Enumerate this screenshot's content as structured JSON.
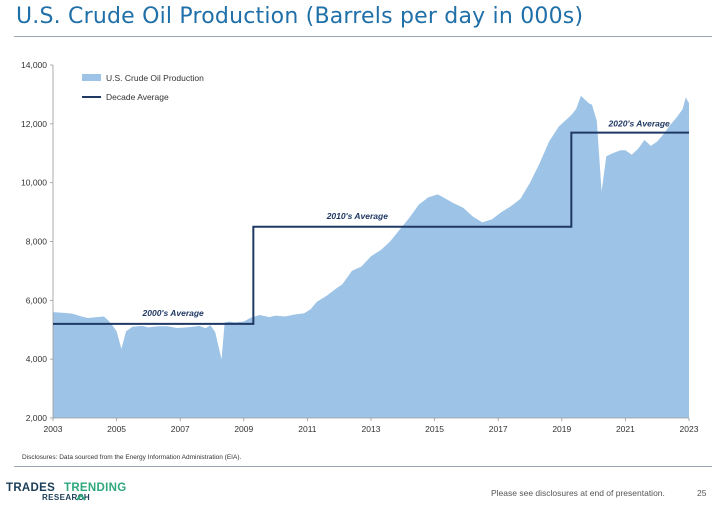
{
  "title": "U.S. Crude Oil Production (Barrels per day in 000s)",
  "disclosure": "Disclosures: Data sourced from the Energy Information Administration (EIA).",
  "footer_note": "Please see disclosures at end of presentation.",
  "page_number": "25",
  "logo": {
    "trades": "TRADES",
    "trending": "TRENDING",
    "research": "RESEARCH"
  },
  "colors": {
    "area": "#9dc3e6",
    "line": "#1f3864",
    "title": "#1f6fa8",
    "text": "#333333"
  },
  "chart_data": {
    "type": "area",
    "title": "U.S. Crude Oil Production (Barrels per day in 000s)",
    "xlabel": "",
    "ylabel": "",
    "xlim": [
      2003,
      2023
    ],
    "ylim": [
      2000,
      14000
    ],
    "yticks": [
      2000,
      4000,
      6000,
      8000,
      10000,
      12000,
      14000
    ],
    "ytick_labels": [
      "2,000",
      "4,000",
      "6,000",
      "8,000",
      "10,000",
      "12,000",
      "14,000"
    ],
    "xticks": [
      2003,
      2005,
      2007,
      2009,
      2011,
      2013,
      2015,
      2017,
      2019,
      2021,
      2023
    ],
    "xtick_labels": [
      "2003",
      "2005",
      "2007",
      "2009",
      "2011",
      "2013",
      "2015",
      "2017",
      "2019",
      "2021",
      "2023"
    ],
    "legend_position": "top-left",
    "series": [
      {
        "name": "U.S. Crude Oil Production",
        "kind": "area",
        "x": [
          2003.0,
          2003.3,
          2003.6,
          2003.9,
          2004.1,
          2004.3,
          2004.6,
          2004.75,
          2004.9,
          2005.0,
          2005.15,
          2005.3,
          2005.5,
          2005.8,
          2006.0,
          2006.3,
          2006.6,
          2006.9,
          2007.2,
          2007.4,
          2007.6,
          2007.8,
          2007.95,
          2008.1,
          2008.3,
          2008.4,
          2008.55,
          2008.7,
          2009.0,
          2009.2,
          2009.5,
          2009.8,
          2010.0,
          2010.3,
          2010.6,
          2010.9,
          2011.1,
          2011.3,
          2011.6,
          2011.9,
          2012.1,
          2012.4,
          2012.7,
          2013.0,
          2013.3,
          2013.6,
          2013.9,
          2014.2,
          2014.5,
          2014.8,
          2015.1,
          2015.35,
          2015.6,
          2015.9,
          2016.2,
          2016.5,
          2016.8,
          2017.1,
          2017.4,
          2017.7,
          2018.0,
          2018.3,
          2018.6,
          2018.9,
          2019.1,
          2019.3,
          2019.45,
          2019.6,
          2019.75,
          2019.85,
          2019.95,
          2020.1,
          2020.25,
          2020.4,
          2020.6,
          2020.85,
          2021.0,
          2021.2,
          2021.4,
          2021.6,
          2021.8,
          2022.0,
          2022.2,
          2022.4,
          2022.6,
          2022.8,
          2022.9,
          2023.0
        ],
        "values": [
          5600,
          5580,
          5550,
          5450,
          5400,
          5420,
          5450,
          5300,
          5100,
          4950,
          4350,
          4950,
          5100,
          5130,
          5080,
          5120,
          5120,
          5060,
          5080,
          5100,
          5130,
          5050,
          5150,
          4920,
          4000,
          5250,
          5280,
          5250,
          5280,
          5400,
          5500,
          5430,
          5480,
          5450,
          5520,
          5560,
          5700,
          5950,
          6150,
          6400,
          6550,
          7000,
          7150,
          7500,
          7700,
          8000,
          8400,
          8800,
          9250,
          9500,
          9600,
          9450,
          9300,
          9150,
          8850,
          8650,
          8750,
          9000,
          9200,
          9450,
          10000,
          10650,
          11400,
          11900,
          12100,
          12300,
          12500,
          12950,
          12800,
          12700,
          12650,
          12100,
          9700,
          10900,
          11000,
          11100,
          11100,
          10950,
          11150,
          11450,
          11250,
          11400,
          11650,
          11950,
          12200,
          12500,
          12900,
          12700
        ]
      },
      {
        "name": "Decade Average",
        "kind": "step",
        "segments": [
          {
            "label": "2000's Average",
            "x0": 2003.0,
            "x1": 2009.3,
            "value": 5200
          },
          {
            "label": "2010's Average",
            "x0": 2009.3,
            "x1": 2019.3,
            "value": 8500
          },
          {
            "label": "2020's Average",
            "x0": 2019.3,
            "x1": 2023.0,
            "value": 11700
          }
        ]
      }
    ],
    "annotations": [
      "2000's Average",
      "2010's Average",
      "2020's Average"
    ]
  }
}
